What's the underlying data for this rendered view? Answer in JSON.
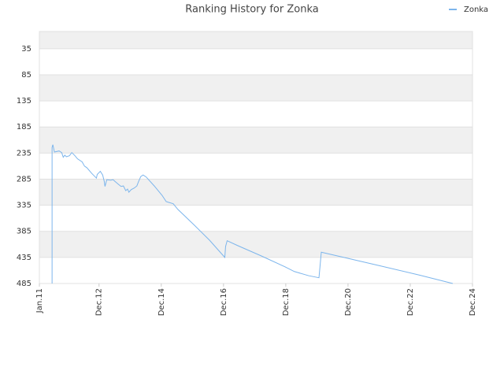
{
  "chart_data": {
    "type": "line",
    "title": "Ranking History for Zonka",
    "x": [
      4.9,
      4.9,
      5.2,
      5.8,
      7.6,
      8.6,
      9.2,
      9.8,
      10.4,
      11.6,
      12.5,
      13.7,
      14.7,
      16.5,
      17.4,
      18.3,
      20.2,
      21.4,
      22,
      22.3,
      23.5,
      24.4,
      25,
      25.3,
      26,
      27.5,
      28.4,
      29.3,
      30.5,
      31.5,
      32.4,
      33.3,
      34,
      34.5,
      35.4,
      36.6,
      37.6,
      38.2,
      39.1,
      40,
      41.2,
      44.3,
      47.3,
      48.9,
      49.5,
      51.6,
      53.4,
      59.5,
      65.6,
      71.5,
      71.8,
      72.4,
      76.3,
      85.5,
      94.7,
      98.3,
      103.8,
      107.8,
      108.1,
      108.7,
      116.6,
      131.3,
      146.6,
      159.4
    ],
    "series": [
      {
        "name": "Zonka",
        "color": "#7cb5ec",
        "values": [
          485,
          224,
          219,
          233,
          231,
          234,
          243,
          239,
          242,
          240,
          234,
          240,
          246,
          252,
          260,
          263,
          274,
          280,
          283,
          276,
          270,
          277,
          289,
          299,
          286,
          287,
          286,
          290,
          295,
          299,
          298,
          307,
          304,
          310,
          305,
          302,
          298,
          290,
          280,
          277,
          281,
          298,
          316,
          328,
          329,
          332,
          343,
          372,
          402,
          435,
          414,
          403,
          412,
          432,
          453,
          462,
          470,
          474,
          458,
          425,
          434,
          451,
          469,
          485
        ]
      }
    ],
    "xlim": [
      0,
      167
    ],
    "xticks": [
      {
        "value": 0,
        "label": "Jan.11"
      },
      {
        "value": 23,
        "label": "Dec.12"
      },
      {
        "value": 47,
        "label": "Dec.14"
      },
      {
        "value": 71,
        "label": "Dec.16"
      },
      {
        "value": 95,
        "label": "Dec.18"
      },
      {
        "value": 119,
        "label": "Dec.20"
      },
      {
        "value": 143,
        "label": "Dec.22"
      },
      {
        "value": 167,
        "label": "Dec.24"
      }
    ],
    "ylim": [
      2,
      485
    ],
    "yticks": [
      35,
      85,
      135,
      185,
      235,
      285,
      335,
      385,
      435,
      485
    ],
    "grid": true,
    "legend": "top-right"
  }
}
